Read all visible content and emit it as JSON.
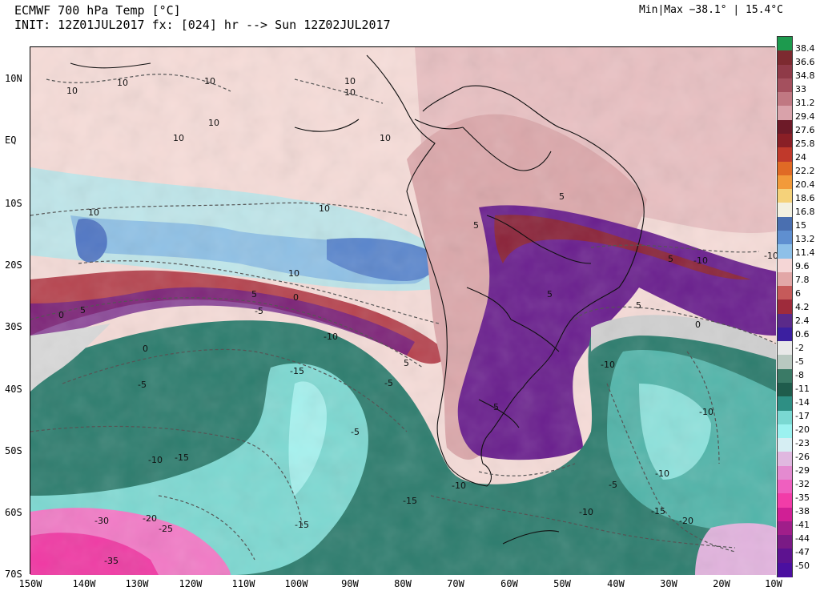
{
  "header": {
    "title": "ECMWF 700 hPa Temp [°C]",
    "init": "INIT: 12Z01JUL2017 fx: [024] hr --> Sun 12Z02JUL2017",
    "minmax": "Min|Max −38.1° | 15.4°C"
  },
  "map": {
    "lat_labels": [
      "10N",
      "EQ",
      "10S",
      "20S",
      "30S",
      "40S",
      "50S",
      "60S",
      "70S"
    ],
    "lon_labels": [
      "150W",
      "140W",
      "130W",
      "120W",
      "110W",
      "100W",
      "90W",
      "80W",
      "70W",
      "60W",
      "50W",
      "40W",
      "30W",
      "20W",
      "10W"
    ],
    "contour_labels": [
      "10",
      "10",
      "10",
      "10",
      "10",
      "10",
      "10",
      "10",
      "10",
      "10",
      "5",
      "5",
      "5",
      "5",
      "5",
      "0",
      "0",
      "0",
      "10",
      "5",
      "-5",
      "-5",
      "-10",
      "-5",
      "-15",
      "-10",
      "-15",
      "-5",
      "-10",
      "-10",
      "-10",
      "-5",
      "-10",
      "-15",
      "-15",
      "-10",
      "-20",
      "-25",
      "-30",
      "-35",
      "-20",
      "-15",
      "-10",
      "-10",
      "5",
      "5",
      "5",
      "0"
    ]
  },
  "colorbar": {
    "labels": [
      "38.4",
      "36.6",
      "34.8",
      "33",
      "31.2",
      "29.4",
      "27.6",
      "25.8",
      "24",
      "22.2",
      "20.4",
      "18.6",
      "16.8",
      "15",
      "13.2",
      "11.4",
      "9.6",
      "7.8",
      "6",
      "4.2",
      "2.4",
      "0.6",
      "-2",
      "-5",
      "-8",
      "-11",
      "-14",
      "-17",
      "-20",
      "-23",
      "-26",
      "-29",
      "-32",
      "-35",
      "-38",
      "-41",
      "-44",
      "-47",
      "-50"
    ],
    "colors": [
      "#1d9a4e",
      "#7d2a30",
      "#8f3a48",
      "#a4505e",
      "#c07882",
      "#d9a2aa",
      "#6d1a28",
      "#8a1f26",
      "#c0392b",
      "#e06a25",
      "#f29a3a",
      "#f5d27a",
      "#f3f0e0",
      "#4a6fb0",
      "#5f8fd0",
      "#8ec0e8",
      "#f5d6d6",
      "#e2a7a7",
      "#c65a5a",
      "#9e2b3b",
      "#5a2a8a",
      "#3b1fa0",
      "#e8e8e8",
      "#b8c8c0",
      "#3a7a66",
      "#1f5c4c",
      "#2e8f84",
      "#7ad8d2",
      "#9bf2f0",
      "#d6eef3",
      "#e0b8e0",
      "#e48ad0",
      "#ef5fbf",
      "#f23ca8",
      "#d01f95",
      "#a01e8a",
      "#7a1a85",
      "#5d1290",
      "#4b0fa0"
    ]
  }
}
